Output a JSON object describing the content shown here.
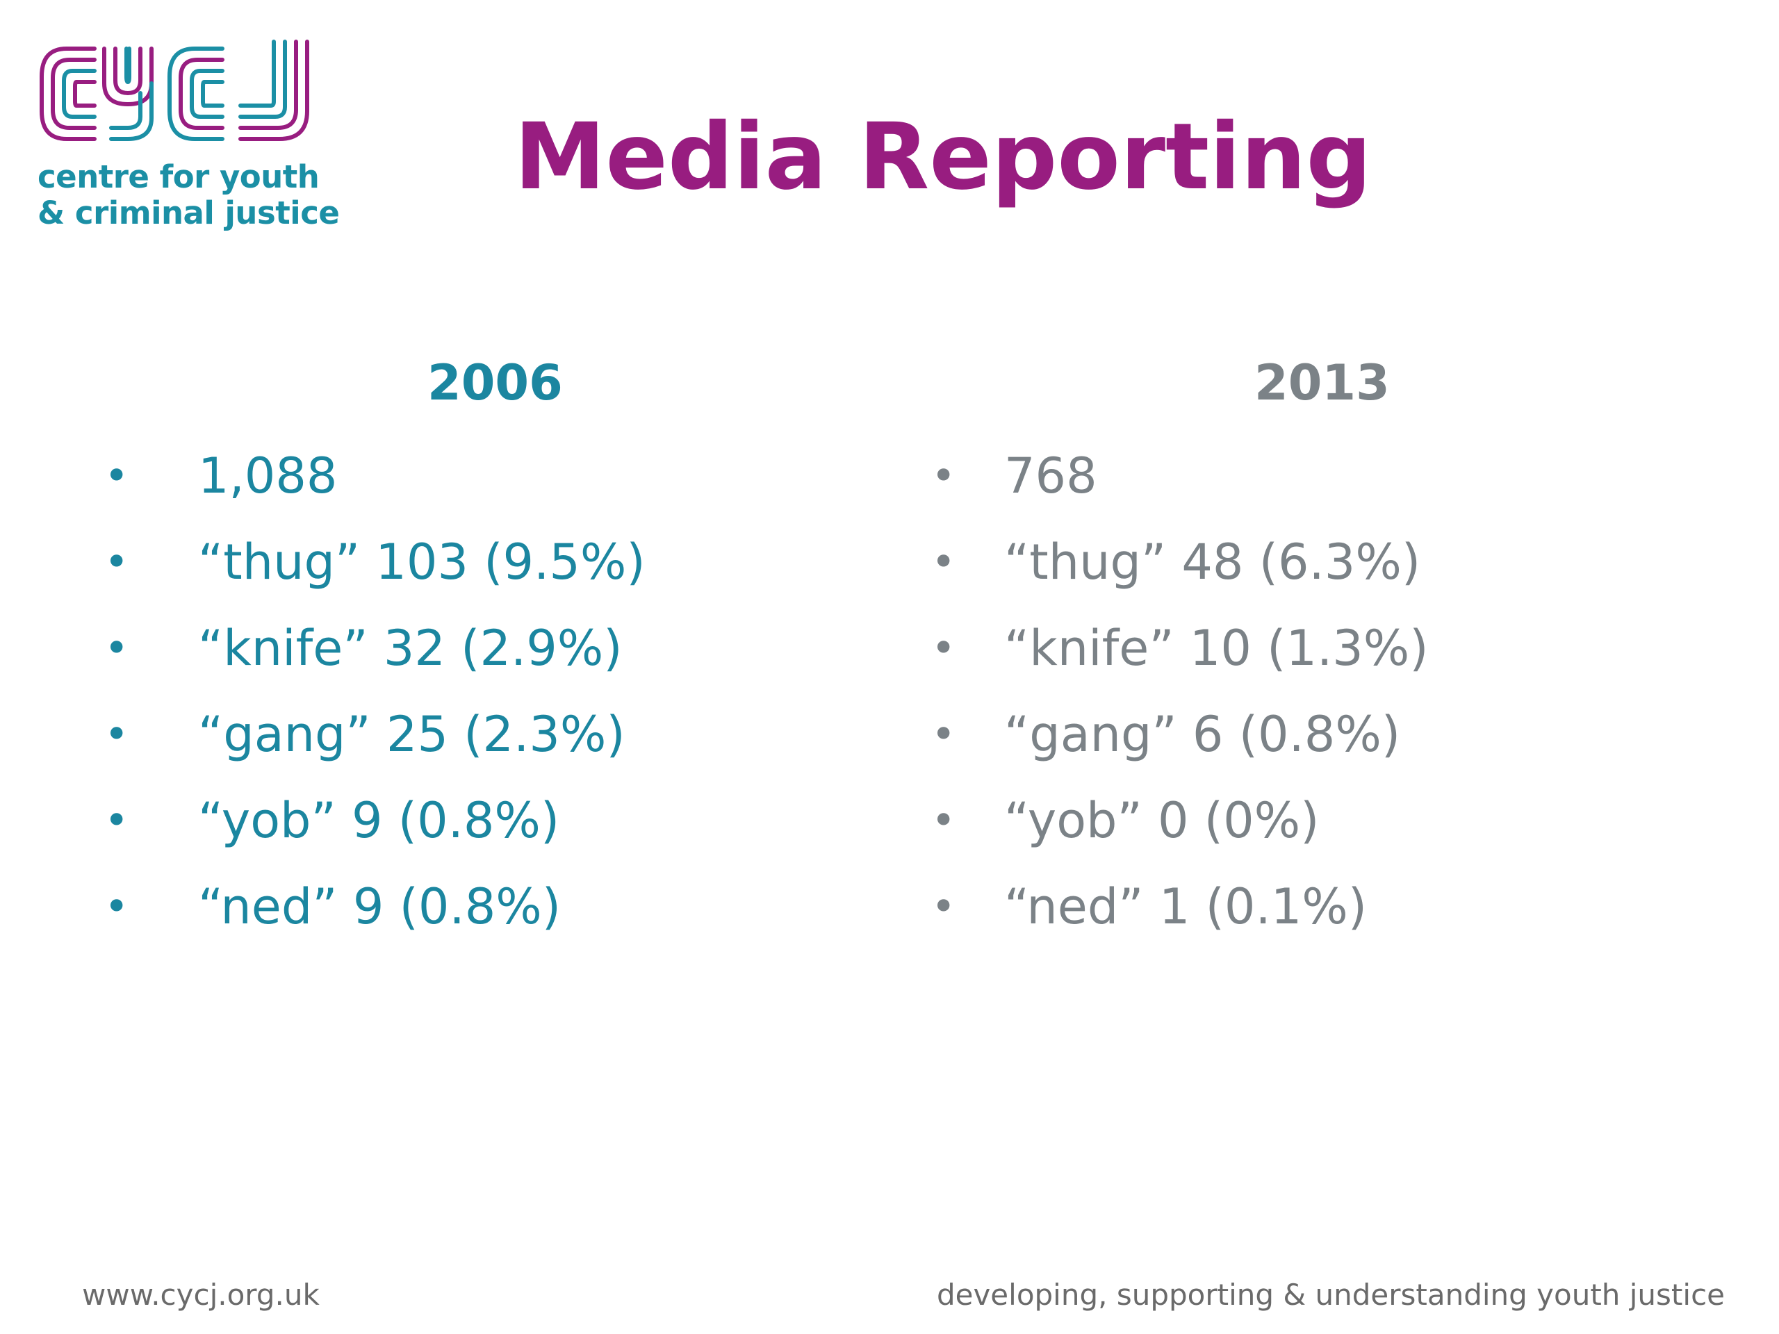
{
  "logo": {
    "wordmark": "CYCJ",
    "line1": "centre for youth",
    "line2": "& criminal justice",
    "colors": {
      "purple": "#981d80",
      "teal": "#1b8fa5"
    }
  },
  "title": "Media Reporting",
  "columns": [
    {
      "heading": "2006",
      "items": [
        "1,088",
        "“thug” 103 (9.5%)",
        "“knife” 32 (2.9%)",
        "“gang” 25 (2.3%)",
        "“yob” 9 (0.8%)",
        "“ned” 9 (0.8%)"
      ]
    },
    {
      "heading": "2013",
      "items": [
        "768",
        "“thug” 48 (6.3%)",
        "“knife” 10 (1.3%)",
        "“gang” 6 (0.8%)",
        "“yob” 0 (0%)",
        "“ned” 1 (0.1%)"
      ]
    }
  ],
  "bullet": "•",
  "footer": {
    "left": "www.cycj.org.uk",
    "right": "developing, supporting & understanding youth justice"
  },
  "colors": {
    "title": "#981d80",
    "col_2006": "#1b86a0",
    "col_2013": "#7b8287",
    "footer": "#6a6a6a"
  }
}
